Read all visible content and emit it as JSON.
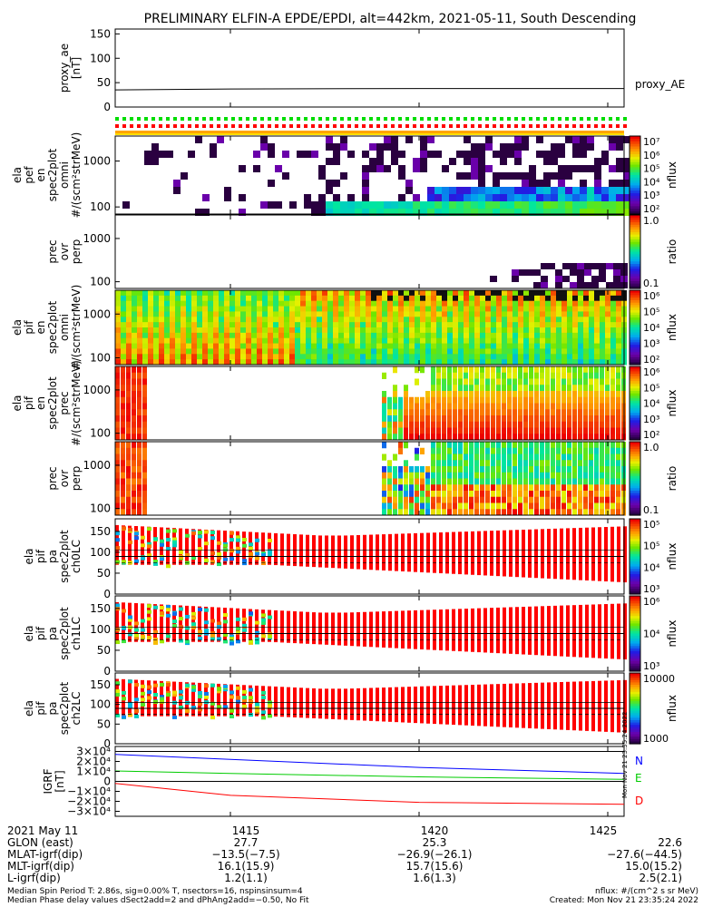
{
  "title": "PRELIMINARY ELFIN-A EPDE/EPDI, alt=442km, 2021-05-11, South Descending",
  "panels": [
    {
      "id": "proxy_ae",
      "ylabel": [
        "proxy_ae",
        "[nT]"
      ],
      "yticks": [
        "150",
        "100",
        "50",
        "0"
      ],
      "legend": "proxy_AE"
    },
    {
      "id": "e_spec",
      "ylabel": [
        "ela",
        "pef",
        "en",
        "spec2plot",
        "omni",
        "#/(scm²strMeV)"
      ],
      "yticks": [
        "1000",
        "100"
      ],
      "zlabel": "nflux",
      "zticks": [
        "10⁷",
        "10⁶",
        "10⁵",
        "10⁴",
        "10³",
        "10²"
      ]
    },
    {
      "id": "e_ratio",
      "ylabel": [
        "prec",
        "ovr",
        "perp"
      ],
      "yticks": [
        "1000",
        "100"
      ],
      "zlabel": "ratio",
      "zticks": [
        "1.0",
        "0.1"
      ]
    },
    {
      "id": "i_omni",
      "ylabel": [
        "ela",
        "pif",
        "en",
        "spec2plot",
        "omni",
        "#/(scm²strMeV)"
      ],
      "yticks": [
        "1000",
        "100"
      ],
      "zlabel": "nflux",
      "zticks": [
        "10⁶",
        "10⁵",
        "10⁴",
        "10³",
        "10²"
      ]
    },
    {
      "id": "i_prec",
      "ylabel": [
        "ela",
        "pif",
        "en",
        "spec2plot",
        "prec",
        "#/(scm²strMeV)"
      ],
      "yticks": [
        "1000",
        "100"
      ],
      "zlabel": "nflux",
      "zticks": [
        "10⁶",
        "10⁵",
        "10⁴",
        "10³",
        "10²"
      ]
    },
    {
      "id": "i_ratio",
      "ylabel": [
        "prec",
        "ovr",
        "perp"
      ],
      "yticks": [
        "1000",
        "100"
      ],
      "zlabel": "ratio",
      "zticks": [
        "1.0",
        "0.1"
      ]
    },
    {
      "id": "pa0",
      "ylabel": [
        "ela",
        "pif",
        "pa",
        "spec2plot",
        "ch0LC"
      ],
      "yticks": [
        "150",
        "100",
        "50",
        "0"
      ],
      "zlabel": "nflux",
      "zticks": [
        "10⁵",
        "10⁵",
        "10⁴",
        "10³"
      ]
    },
    {
      "id": "pa1",
      "ylabel": [
        "ela",
        "pif",
        "pa",
        "spec2plot",
        "ch1LC"
      ],
      "yticks": [
        "150",
        "100",
        "50",
        "0"
      ],
      "zlabel": "nflux",
      "zticks": [
        "10⁶",
        "10⁴",
        "10³"
      ]
    },
    {
      "id": "pa2",
      "ylabel": [
        "ela",
        "pif",
        "pa",
        "spec2plot",
        "ch2LC"
      ],
      "yticks": [
        "150",
        "100",
        "50",
        "0"
      ],
      "zlabel": "nflux",
      "zticks": [
        "10000",
        "1000"
      ]
    },
    {
      "id": "igrf",
      "ylabel": [
        "IGRF",
        "[nT]"
      ],
      "yticks": [
        "3×10⁴",
        "2×10⁴",
        "1×10⁴",
        "0",
        "−1×10⁴",
        "−2×10⁴",
        "−3×10⁴"
      ],
      "legend": [
        "N",
        "E",
        "D"
      ]
    }
  ],
  "colors": {
    "N": "#0000ff",
    "E": "#00cc00",
    "D": "#ff0000",
    "flag_green": "#00dd00",
    "flag_red": "#ff0000",
    "flag_orange": "#ffa500",
    "flag_yellow": "#ffdd00"
  },
  "side_stamp": "Mon Nov 21 23:35:24 2022",
  "chart_data": [
    {
      "type": "line",
      "name": "proxy_AE",
      "x": [
        "1410",
        "1415",
        "1420",
        "1425"
      ],
      "y": [
        35,
        37,
        38,
        38
      ],
      "ylim": [
        0,
        160
      ]
    },
    {
      "type": "line",
      "name": "IGRF components",
      "x": [
        "1410",
        "1415",
        "1420",
        "1425"
      ],
      "series": [
        {
          "name": "N",
          "values": [
            27000,
            22000,
            14000,
            8000
          ]
        },
        {
          "name": "E",
          "values": [
            10500,
            8000,
            4500,
            2000
          ]
        },
        {
          "name": "D",
          "values": [
            -2000,
            -14000,
            -21000,
            -23000
          ]
        }
      ],
      "ylim": [
        -35000,
        35000
      ]
    },
    {
      "type": "heatmap",
      "name": "ela pef en spec2plot omni",
      "yscale": "log",
      "ylim": [
        70,
        3500
      ],
      "zlim": [
        "1e2",
        "1e7"
      ]
    },
    {
      "type": "heatmap",
      "name": "ela pif en spec2plot omni",
      "yscale": "log",
      "ylim": [
        70,
        3500
      ],
      "zlim": [
        "1e2",
        "1e6"
      ]
    },
    {
      "type": "heatmap",
      "name": "ela pif pa spec2plot ch0LC",
      "ylim": [
        0,
        180
      ],
      "zlim": [
        "1e3",
        "1e5"
      ]
    }
  ],
  "footer": {
    "labels": [
      "2021 May 11",
      "GLON (east)",
      "MLAT-igrf(dip)",
      "MLT-igrf(dip)",
      "L-igrf(dip)"
    ],
    "columns": [
      {
        "time": "1415",
        "rows": [
          "27.7",
          "−13.5(−7.5)",
          "16.1(15.9)",
          "1.2(1.1)"
        ]
      },
      {
        "time": "1420",
        "rows": [
          "25.3",
          "−26.9(−26.1)",
          "15.7(15.6)",
          "1.6(1.3)"
        ]
      },
      {
        "time": "1425",
        "rows": [
          "22.6",
          "−27.6(−44.5)",
          "15.0(15.2)",
          "2.5(2.1)"
        ]
      }
    ],
    "note1": "Median Spin Period T: 2.86s, sig=0.00% T, nsectors=16, nspinsinsum=4",
    "note2": "Median Phase delay values dSect2add=2 and dPhAng2add=−0.50, No Fit",
    "units": "nflux: #/(cm^2 s sr MeV)",
    "created": "Created: Mon Nov 21 23:35:24 2022"
  }
}
